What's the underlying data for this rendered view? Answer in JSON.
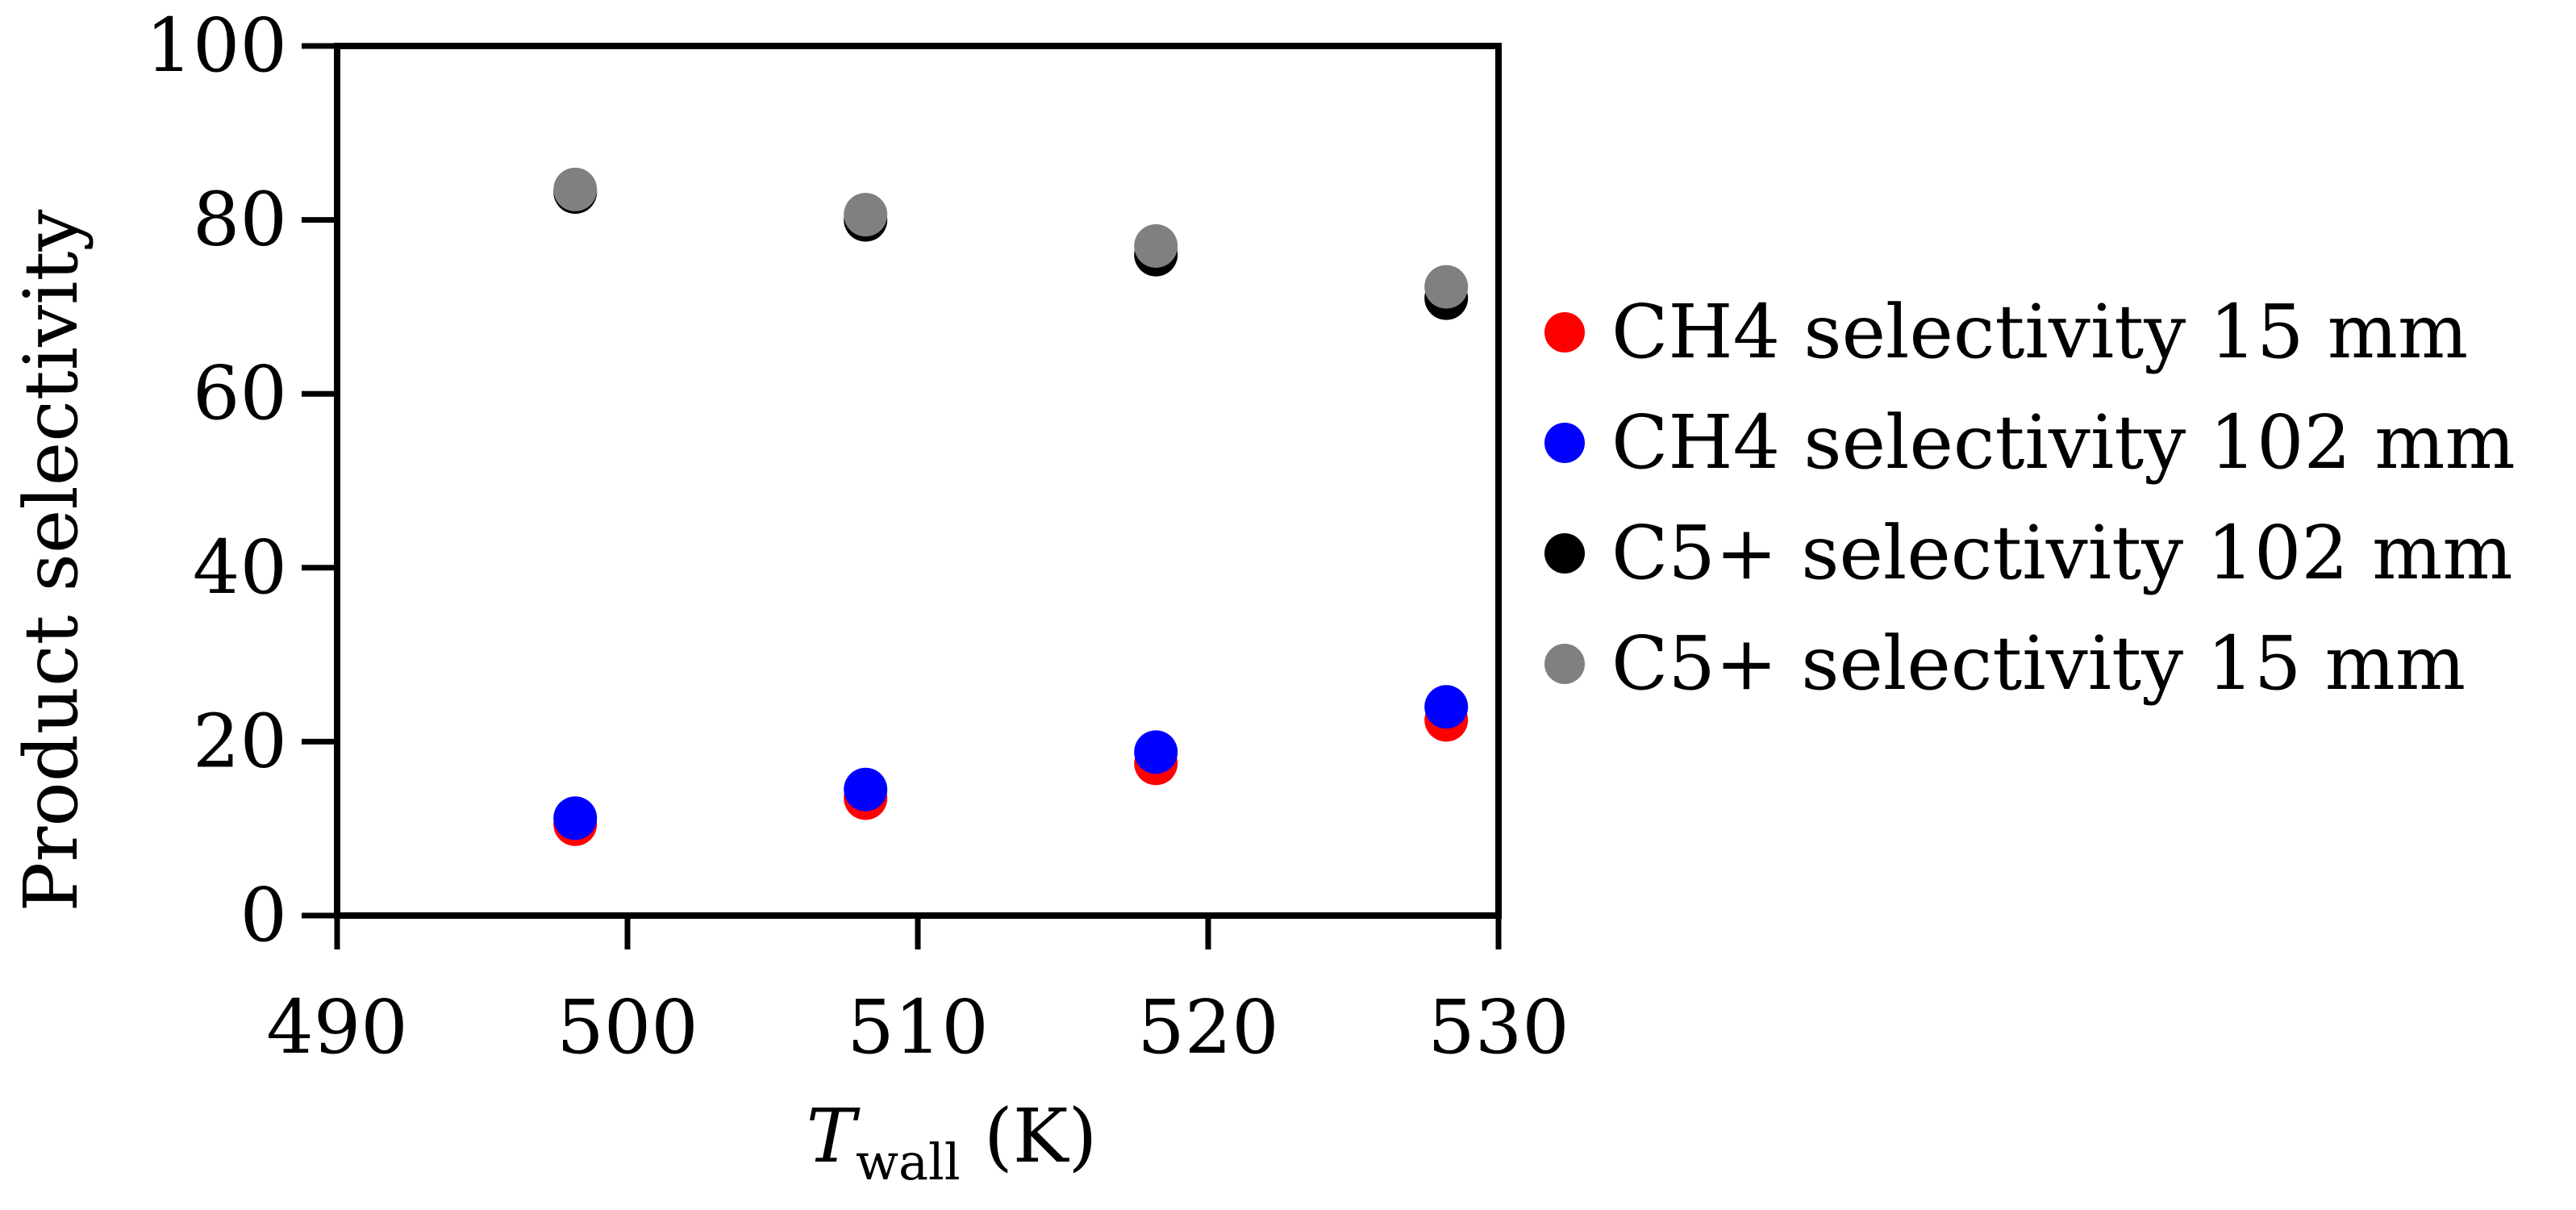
{
  "chart_data": {
    "type": "scatter",
    "xlabel_main": "T",
    "xlabel_sub": "wall",
    "xlabel_unit": " (K)",
    "ylabel": "Product selectivity",
    "xlim": [
      490,
      530
    ],
    "ylim": [
      0,
      100
    ],
    "x_ticks": [
      490,
      500,
      510,
      520,
      530
    ],
    "y_ticks": [
      0,
      20,
      40,
      60,
      80,
      100
    ],
    "x_tick_labels": [
      "490",
      "500",
      "510",
      "520",
      "530"
    ],
    "y_tick_labels": [
      "0",
      "20",
      "40",
      "60",
      "80",
      "100"
    ],
    "grid": false,
    "legend_position": "right",
    "series": [
      {
        "name": "CH4 selectivity 15 mm",
        "color": "#ff0000",
        "x": [
          498.2,
          508.2,
          518.2,
          528.2
        ],
        "y": [
          10.5,
          13.5,
          17.5,
          22.5
        ]
      },
      {
        "name": "CH4 selectivity 102 mm",
        "color": "#0000ff",
        "x": [
          498.2,
          508.2,
          518.2,
          528.2
        ],
        "y": [
          11.2,
          14.5,
          18.8,
          24.0
        ]
      },
      {
        "name": "C5+ selectivity 102 mm",
        "color": "#000000",
        "x": [
          498.2,
          508.2,
          518.2,
          528.2
        ],
        "y": [
          83.2,
          80.0,
          76.0,
          71.0
        ]
      },
      {
        "name": "C5+ selectivity 15 mm",
        "color": "#808080",
        "x": [
          498.2,
          508.2,
          518.2,
          528.2
        ],
        "y": [
          83.5,
          80.6,
          77.0,
          72.3
        ]
      }
    ]
  }
}
